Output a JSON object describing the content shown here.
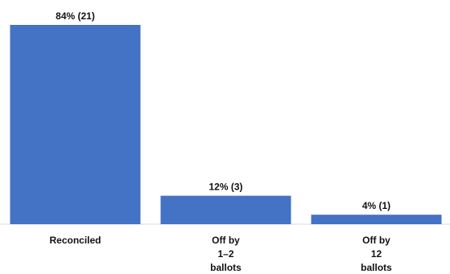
{
  "chart_data": {
    "type": "bar",
    "categories": [
      [
        "Reconciled"
      ],
      [
        "Off by",
        "1–2",
        "ballots"
      ],
      [
        "Off by",
        "12",
        "ballots"
      ]
    ],
    "values": [
      84,
      12,
      4
    ],
    "data_labels": [
      "84% (21)",
      "12% (3)",
      "4% (1)"
    ],
    "title": "",
    "xlabel": "",
    "ylabel": "",
    "ylim": [
      0,
      84
    ],
    "grid": false,
    "legend": "none",
    "bar_color": "#4472C4",
    "axis_color": "#D9D9D9"
  }
}
